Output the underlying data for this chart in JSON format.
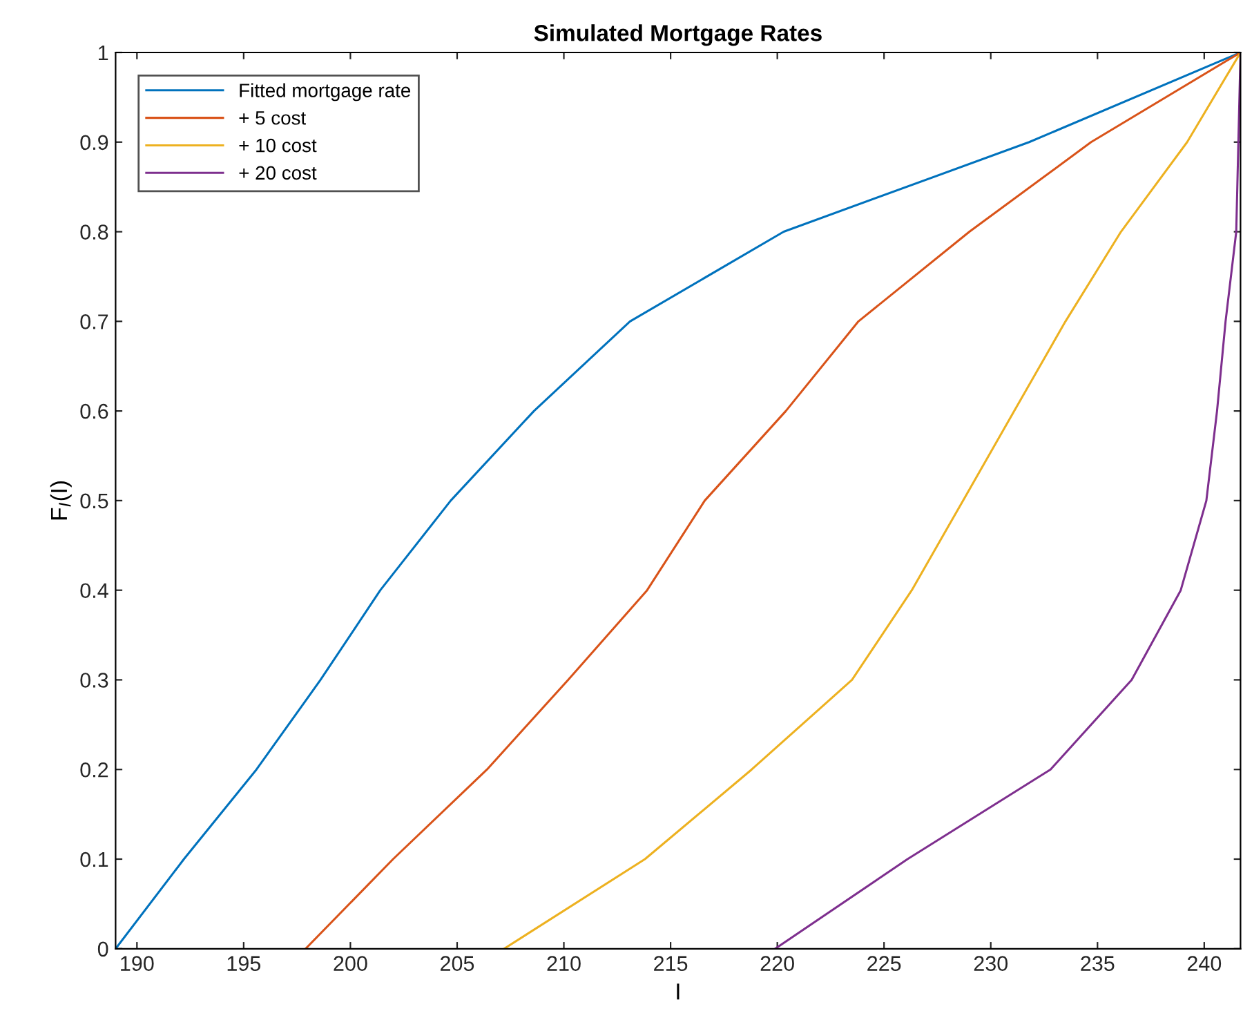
{
  "chart_data": {
    "type": "line",
    "title": "Simulated Mortgage Rates",
    "xlabel": "I",
    "ylabel": "F$_{I}$(I)",
    "xlim": [
      189,
      241.7
    ],
    "ylim": [
      0,
      1
    ],
    "xticks": [
      190,
      195,
      200,
      205,
      210,
      215,
      220,
      225,
      230,
      235,
      240
    ],
    "yticks": [
      0,
      0.1,
      0.2,
      0.3,
      0.4,
      0.5,
      0.6,
      0.7,
      0.8,
      0.9,
      1
    ],
    "grid": false,
    "legend": "top left",
    "marker": "none",
    "line_style": "solid",
    "series": [
      {
        "name": "Fitted mortgage rate",
        "color": "#0072bd",
        "x": [
          189,
          192.2,
          195.6,
          198.6,
          201.4,
          204.7,
          208.6,
          213.1,
          220.3,
          231.8,
          241.7
        ],
        "values": [
          0,
          0.1,
          0.2,
          0.3,
          0.4,
          0.5,
          0.6,
          0.7,
          0.8,
          0.9,
          1
        ]
      },
      {
        "name": "+ 5 cost",
        "color": "#d95319",
        "x": [
          197.9,
          202.0,
          206.4,
          210.2,
          213.9,
          216.6,
          220.4,
          223.8,
          229.0,
          234.7,
          241.7
        ],
        "values": [
          0,
          0.1,
          0.2,
          0.3,
          0.4,
          0.5,
          0.6,
          0.7,
          0.8,
          0.9,
          1
        ]
      },
      {
        "name": "+ 10 cost",
        "color": "#edb120",
        "x": [
          207.2,
          213.8,
          218.8,
          223.5,
          226.3,
          228.7,
          231.1,
          233.5,
          236.1,
          239.2,
          241.7
        ],
        "values": [
          0,
          0.1,
          0.2,
          0.3,
          0.4,
          0.5,
          0.6,
          0.7,
          0.8,
          0.9,
          1
        ]
      },
      {
        "name": "+ 20 cost",
        "color": "#7e2f8e",
        "x": [
          219.9,
          226.1,
          232.8,
          236.6,
          238.9,
          240.1,
          240.6,
          241.0,
          241.5,
          241.6,
          241.7
        ],
        "values": [
          0,
          0.1,
          0.2,
          0.3,
          0.4,
          0.5,
          0.6,
          0.7,
          0.8,
          0.9,
          1
        ]
      }
    ]
  }
}
